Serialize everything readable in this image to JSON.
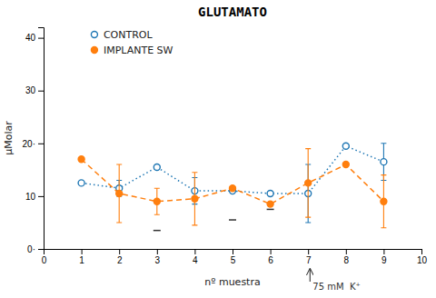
{
  "chart_data": {
    "type": "line",
    "title": "GLUTAMATO",
    "x_label": "nº muestra",
    "y_label": "μMolar",
    "xlim": [
      0,
      10
    ],
    "ylim": [
      0,
      42
    ],
    "xticks": [
      0,
      1,
      2,
      3,
      4,
      5,
      6,
      7,
      8,
      9,
      10
    ],
    "yticks": [
      {
        "value": 0,
        "label": "0·"
      },
      10,
      {
        "value": 20,
        "label": "20·"
      },
      30,
      {
        "value": 40,
        "label": "40"
      }
    ],
    "legend": "upper left",
    "x": [
      1,
      2,
      3,
      4,
      5,
      6,
      7,
      8,
      9
    ],
    "series": [
      {
        "name": "CONTROL",
        "marker": "circle-open",
        "line_style": "dotted",
        "values": [
          12.5,
          11.5,
          15.5,
          11.0,
          11.0,
          10.5,
          10.5,
          19.5,
          16.5
        ],
        "yerr_lo": [
          0,
          1.5,
          0,
          2.5,
          0,
          0,
          5.5,
          0,
          3.5
        ],
        "yerr_hi": [
          0,
          1.5,
          0,
          2.5,
          0,
          0,
          5.5,
          0,
          3.5
        ]
      },
      {
        "name": "IMPLANTE SW",
        "marker": "circle",
        "line_style": "dashed",
        "values": [
          17.0,
          10.5,
          9.0,
          9.5,
          11.5,
          8.5,
          12.5,
          16.0,
          9.0
        ],
        "yerr_lo": [
          0,
          5.5,
          2.5,
          5.0,
          0,
          0,
          6.5,
          0,
          5.0
        ],
        "yerr_hi": [
          0,
          5.5,
          2.5,
          5.0,
          0,
          0,
          6.5,
          0,
          5.0
        ]
      }
    ],
    "stat_marks": [
      {
        "x": 3.0,
        "y": 3.5
      },
      {
        "x": 5.0,
        "y": 5.5
      },
      {
        "x": 6.0,
        "y": 7.5
      }
    ],
    "annotations": [
      {
        "x": 7.05,
        "text": "75 mM  K⁺"
      }
    ]
  }
}
